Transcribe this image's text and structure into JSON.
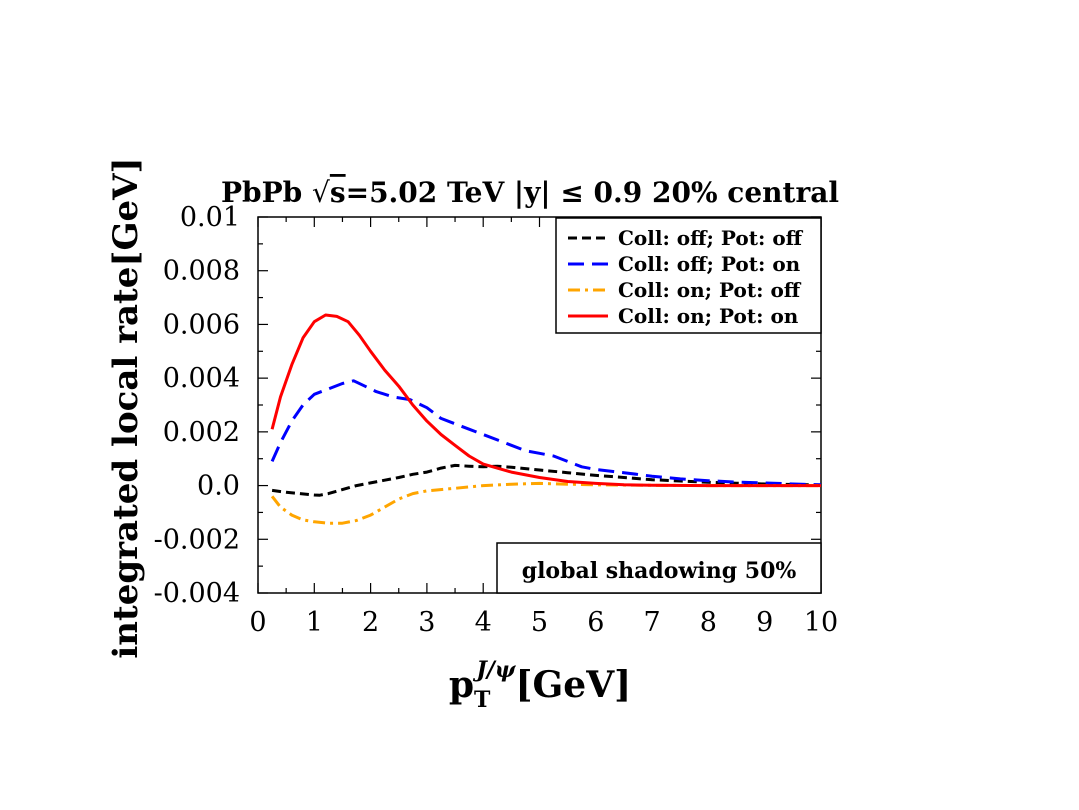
{
  "chart_data": {
    "type": "line",
    "title": "PbPb √s=5.02 TeV |y| ≤ 0.9 20% central",
    "title_parts": {
      "prefix": "PbPb ",
      "sqrt_arg": "s",
      "rest": "=5.02 TeV |y| ≤ 0.9 20% central"
    },
    "xlabel": "p_T^{J/ψ}[GeV]",
    "xlabel_parts": {
      "base": "p",
      "sub": "T",
      "sup": "J/ψ",
      "unit": "[GeV]"
    },
    "ylabel": "integrated local rate[GeV]",
    "xlim": [
      0,
      10
    ],
    "ylim": [
      -0.004,
      0.01
    ],
    "x_ticks": [
      "0",
      "1",
      "2",
      "3",
      "4",
      "5",
      "6",
      "7",
      "8",
      "9",
      "10"
    ],
    "y_ticks": [
      {
        "value": -0.004,
        "label": "-0.004"
      },
      {
        "value": -0.002,
        "label": "-0.002"
      },
      {
        "value": 0.0,
        "label": "0.0"
      },
      {
        "value": 0.002,
        "label": "0.002"
      },
      {
        "value": 0.004,
        "label": "0.004"
      },
      {
        "value": 0.006,
        "label": "0.006"
      },
      {
        "value": 0.008,
        "label": "0.008"
      },
      {
        "value": 0.01,
        "label": "0.01"
      }
    ],
    "grid": false,
    "legend_position": "top-right",
    "annotation": "global shadowing 50%",
    "annotation_position": "bottom-right",
    "series": [
      {
        "name": "Coll: off; Pot: off",
        "color": "#000000",
        "dash": "dashed",
        "points": [
          [
            0.25,
            -0.00018
          ],
          [
            0.5,
            -0.00025
          ],
          [
            0.75,
            -0.0003
          ],
          [
            1.0,
            -0.00035
          ],
          [
            1.1,
            -0.00036
          ],
          [
            1.25,
            -0.0003
          ],
          [
            1.5,
            -0.00015
          ],
          [
            1.75,
            0.0
          ],
          [
            2.0,
            0.0001
          ],
          [
            2.25,
            0.0002
          ],
          [
            2.5,
            0.0003
          ],
          [
            2.75,
            0.00042
          ],
          [
            3.0,
            0.0005
          ],
          [
            3.25,
            0.00065
          ],
          [
            3.5,
            0.00075
          ],
          [
            3.75,
            0.00072
          ],
          [
            4.0,
            0.0007
          ],
          [
            4.25,
            0.00072
          ],
          [
            4.5,
            0.00068
          ],
          [
            5.0,
            0.00058
          ],
          [
            5.5,
            0.00048
          ],
          [
            6.0,
            0.00038
          ],
          [
            6.5,
            0.0003
          ],
          [
            7.0,
            0.00022
          ],
          [
            7.5,
            0.00017
          ],
          [
            8.0,
            0.00012
          ],
          [
            8.5,
            9e-05
          ],
          [
            9.0,
            6e-05
          ],
          [
            9.5,
            4e-05
          ],
          [
            10.0,
            2e-05
          ]
        ]
      },
      {
        "name": "Coll: off; Pot: on",
        "color": "#0000ff",
        "dash": "long-dashed",
        "points": [
          [
            0.25,
            0.0009
          ],
          [
            0.4,
            0.0016
          ],
          [
            0.6,
            0.0024
          ],
          [
            0.8,
            0.003
          ],
          [
            1.0,
            0.0034
          ],
          [
            1.25,
            0.0036
          ],
          [
            1.5,
            0.0038
          ],
          [
            1.7,
            0.0039
          ],
          [
            1.9,
            0.0037
          ],
          [
            2.1,
            0.0035
          ],
          [
            2.4,
            0.0033
          ],
          [
            2.7,
            0.0032
          ],
          [
            3.0,
            0.0029
          ],
          [
            3.25,
            0.0025
          ],
          [
            3.5,
            0.0023
          ],
          [
            3.75,
            0.0021
          ],
          [
            4.0,
            0.0019
          ],
          [
            4.25,
            0.0017
          ],
          [
            4.5,
            0.0015
          ],
          [
            4.75,
            0.0013
          ],
          [
            5.0,
            0.0012
          ],
          [
            5.25,
            0.0011
          ],
          [
            5.5,
            0.0009
          ],
          [
            5.75,
            0.0007
          ],
          [
            6.0,
            0.0006
          ],
          [
            6.5,
            0.00048
          ],
          [
            7.0,
            0.00035
          ],
          [
            7.5,
            0.00025
          ],
          [
            8.0,
            0.00018
          ],
          [
            8.5,
            0.00013
          ],
          [
            9.0,
            0.0001
          ],
          [
            9.5,
            6e-05
          ],
          [
            10.0,
            3e-05
          ]
        ]
      },
      {
        "name": "Coll: on; Pot: off",
        "color": "#ffa500",
        "dash": "dash-dot",
        "points": [
          [
            0.25,
            -0.0004
          ],
          [
            0.4,
            -0.0008
          ],
          [
            0.6,
            -0.0011
          ],
          [
            0.8,
            -0.00128
          ],
          [
            1.0,
            -0.00135
          ],
          [
            1.25,
            -0.0014
          ],
          [
            1.5,
            -0.0014
          ],
          [
            1.75,
            -0.0013
          ],
          [
            2.0,
            -0.0011
          ],
          [
            2.25,
            -0.0008
          ],
          [
            2.5,
            -0.0005
          ],
          [
            2.75,
            -0.0003
          ],
          [
            3.0,
            -0.0002
          ],
          [
            3.5,
            -0.0001
          ],
          [
            4.0,
            0.0
          ],
          [
            4.5,
            5e-05
          ],
          [
            5.0,
            8e-05
          ],
          [
            5.5,
            5e-05
          ],
          [
            6.0,
            3e-05
          ],
          [
            7.0,
            1e-05
          ],
          [
            8.0,
            0.0
          ],
          [
            9.0,
            0.0
          ],
          [
            10.0,
            0.0
          ]
        ]
      },
      {
        "name": "Coll: on; Pot: on",
        "color": "#ff0000",
        "dash": "solid",
        "points": [
          [
            0.25,
            0.0021
          ],
          [
            0.4,
            0.0033
          ],
          [
            0.6,
            0.0045
          ],
          [
            0.8,
            0.0055
          ],
          [
            1.0,
            0.0061
          ],
          [
            1.2,
            0.00635
          ],
          [
            1.4,
            0.0063
          ],
          [
            1.6,
            0.0061
          ],
          [
            1.8,
            0.0056
          ],
          [
            2.0,
            0.005
          ],
          [
            2.25,
            0.0043
          ],
          [
            2.5,
            0.0037
          ],
          [
            2.75,
            0.003
          ],
          [
            3.0,
            0.0024
          ],
          [
            3.25,
            0.0019
          ],
          [
            3.5,
            0.0015
          ],
          [
            3.75,
            0.0011
          ],
          [
            4.0,
            0.0008
          ],
          [
            4.5,
            0.0005
          ],
          [
            5.0,
            0.0003
          ],
          [
            5.5,
            0.00015
          ],
          [
            6.0,
            8e-05
          ],
          [
            6.5,
            3e-05
          ],
          [
            7.0,
            1e-05
          ],
          [
            8.0,
            0.0
          ],
          [
            9.0,
            0.0
          ],
          [
            10.0,
            0.0
          ]
        ]
      }
    ]
  }
}
